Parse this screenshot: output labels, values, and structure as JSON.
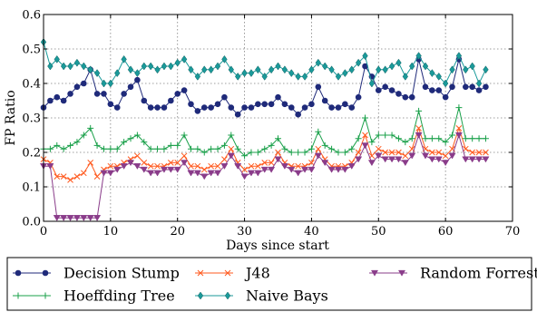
{
  "chart_data": {
    "type": "line",
    "xlabel": "Days since start",
    "ylabel": "FP Ratio",
    "xlim": [
      0,
      70
    ],
    "ylim": [
      0.0,
      0.6
    ],
    "xticks": [
      "0",
      "10",
      "20",
      "30",
      "40",
      "50",
      "60",
      "70"
    ],
    "yticks": [
      "0.0",
      "0.1",
      "0.2",
      "0.3",
      "0.4",
      "0.5",
      "0.6"
    ],
    "grid": true,
    "legend_position": "bottom",
    "x": [
      0,
      1,
      2,
      3,
      4,
      5,
      6,
      7,
      8,
      9,
      10,
      11,
      12,
      13,
      14,
      15,
      16,
      17,
      18,
      19,
      20,
      21,
      22,
      23,
      24,
      25,
      26,
      27,
      28,
      29,
      30,
      31,
      32,
      33,
      34,
      35,
      36,
      37,
      38,
      39,
      40,
      41,
      42,
      43,
      44,
      45,
      46,
      47,
      48,
      49,
      50,
      51,
      52,
      53,
      54,
      55,
      56,
      57,
      58,
      59,
      60,
      61,
      62,
      63,
      64,
      65,
      66
    ],
    "series": [
      {
        "name": "Decision Stump",
        "color": "#1f2a7a",
        "marker": "circle",
        "values": [
          0.33,
          0.35,
          0.36,
          0.35,
          0.37,
          0.39,
          0.4,
          0.44,
          0.37,
          0.37,
          0.34,
          0.33,
          0.37,
          0.39,
          0.41,
          0.35,
          0.33,
          0.33,
          0.33,
          0.35,
          0.37,
          0.38,
          0.34,
          0.32,
          0.33,
          0.33,
          0.34,
          0.36,
          0.33,
          0.31,
          0.33,
          0.33,
          0.34,
          0.34,
          0.34,
          0.36,
          0.34,
          0.33,
          0.31,
          0.33,
          0.34,
          0.39,
          0.35,
          0.33,
          0.33,
          0.34,
          0.33,
          0.36,
          0.45,
          0.42,
          0.38,
          0.39,
          0.38,
          0.37,
          0.36,
          0.36,
          0.47,
          0.39,
          0.38,
          0.38,
          0.36,
          0.39,
          0.47,
          0.39,
          0.39,
          0.38,
          0.39
        ]
      },
      {
        "name": "J48",
        "color": "#ff5a1f",
        "marker": "x",
        "values": [
          0.18,
          0.17,
          0.13,
          0.13,
          0.12,
          0.13,
          0.14,
          0.17,
          0.13,
          0.15,
          0.16,
          0.16,
          0.17,
          0.18,
          0.19,
          0.17,
          0.16,
          0.16,
          0.16,
          0.17,
          0.17,
          0.19,
          0.16,
          0.16,
          0.15,
          0.16,
          0.16,
          0.18,
          0.21,
          0.17,
          0.15,
          0.16,
          0.16,
          0.17,
          0.17,
          0.2,
          0.17,
          0.16,
          0.16,
          0.16,
          0.17,
          0.21,
          0.18,
          0.16,
          0.16,
          0.16,
          0.17,
          0.2,
          0.25,
          0.19,
          0.21,
          0.2,
          0.2,
          0.2,
          0.19,
          0.21,
          0.27,
          0.21,
          0.2,
          0.2,
          0.19,
          0.21,
          0.27,
          0.21,
          0.2,
          0.2,
          0.2
        ]
      },
      {
        "name": "Random Forrest",
        "color": "#8a3c8a",
        "marker": "triangle-down",
        "values": [
          0.16,
          0.16,
          0.01,
          0.01,
          0.01,
          0.01,
          0.01,
          0.01,
          0.01,
          0.14,
          0.14,
          0.15,
          0.16,
          0.17,
          0.16,
          0.15,
          0.14,
          0.14,
          0.15,
          0.15,
          0.15,
          0.17,
          0.14,
          0.14,
          0.13,
          0.14,
          0.14,
          0.16,
          0.19,
          0.16,
          0.13,
          0.14,
          0.14,
          0.15,
          0.15,
          0.18,
          0.16,
          0.15,
          0.14,
          0.15,
          0.15,
          0.19,
          0.17,
          0.15,
          0.15,
          0.15,
          0.16,
          0.18,
          0.22,
          0.17,
          0.19,
          0.18,
          0.18,
          0.18,
          0.17,
          0.19,
          0.25,
          0.19,
          0.18,
          0.18,
          0.17,
          0.19,
          0.25,
          0.18,
          0.18,
          0.18,
          0.18
        ]
      },
      {
        "name": "Hoeffding Tree",
        "color": "#1aa04a",
        "marker": "plus",
        "values": [
          0.21,
          0.21,
          0.22,
          0.21,
          0.22,
          0.23,
          0.25,
          0.27,
          0.22,
          0.21,
          0.21,
          0.21,
          0.23,
          0.24,
          0.25,
          0.23,
          0.21,
          0.21,
          0.21,
          0.22,
          0.22,
          0.25,
          0.21,
          0.21,
          0.2,
          0.21,
          0.21,
          0.22,
          0.25,
          0.21,
          0.19,
          0.2,
          0.2,
          0.21,
          0.22,
          0.24,
          0.21,
          0.2,
          0.2,
          0.2,
          0.21,
          0.26,
          0.22,
          0.21,
          0.2,
          0.2,
          0.21,
          0.24,
          0.3,
          0.23,
          0.25,
          0.25,
          0.25,
          0.24,
          0.23,
          0.24,
          0.32,
          0.24,
          0.24,
          0.24,
          0.23,
          0.25,
          0.33,
          0.24,
          0.24,
          0.24,
          0.24
        ]
      },
      {
        "name": "Naive Bays",
        "color": "#1a9a9a",
        "marker": "diamond",
        "values": [
          0.52,
          0.45,
          0.47,
          0.45,
          0.45,
          0.46,
          0.45,
          0.44,
          0.43,
          0.4,
          0.4,
          0.43,
          0.47,
          0.44,
          0.43,
          0.45,
          0.45,
          0.44,
          0.45,
          0.45,
          0.46,
          0.47,
          0.44,
          0.42,
          0.44,
          0.44,
          0.45,
          0.47,
          0.44,
          0.42,
          0.43,
          0.43,
          0.44,
          0.42,
          0.44,
          0.45,
          0.44,
          0.43,
          0.42,
          0.42,
          0.44,
          0.46,
          0.45,
          0.44,
          0.42,
          0.43,
          0.44,
          0.46,
          0.48,
          0.4,
          0.44,
          0.44,
          0.45,
          0.46,
          0.42,
          0.45,
          0.48,
          0.45,
          0.43,
          0.42,
          0.4,
          0.44,
          0.48,
          0.44,
          0.45,
          0.4,
          0.44
        ]
      }
    ]
  }
}
